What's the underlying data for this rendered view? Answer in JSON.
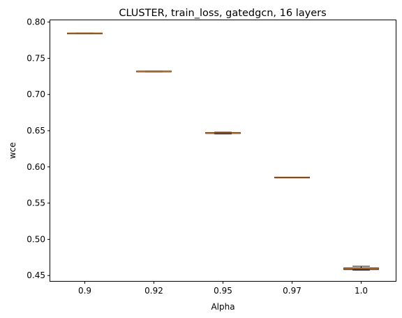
{
  "chart_data": {
    "type": "box",
    "title": "CLUSTER, train_loss, gatedgcn, 16 layers",
    "xlabel": "Alpha",
    "ylabel": "wce",
    "categories": [
      "0.9",
      "0.92",
      "0.95",
      "0.97",
      "1.0"
    ],
    "boxes": [
      {
        "whisker_low": 0.7838,
        "q1": 0.784,
        "median": 0.7843,
        "q3": 0.7846,
        "whisker_high": 0.7848
      },
      {
        "whisker_low": 0.7313,
        "q1": 0.7315,
        "median": 0.7318,
        "q3": 0.7321,
        "whisker_high": 0.7323
      },
      {
        "whisker_low": 0.6455,
        "q1": 0.6462,
        "median": 0.6469,
        "q3": 0.6474,
        "whisker_high": 0.648
      },
      {
        "whisker_low": 0.5848,
        "q1": 0.585,
        "median": 0.5853,
        "q3": 0.5856,
        "whisker_high": 0.5858
      },
      {
        "whisker_low": 0.4575,
        "q1": 0.4582,
        "median": 0.4594,
        "q3": 0.4605,
        "whisker_high": 0.4628
      }
    ],
    "ylim": [
      0.4425,
      0.8025
    ],
    "yticks": [
      "0.45",
      "0.50",
      "0.55",
      "0.60",
      "0.65",
      "0.70",
      "0.75",
      "0.80"
    ],
    "ytick_values": [
      0.45,
      0.5,
      0.55,
      0.6,
      0.65,
      0.7,
      0.75,
      0.8
    ],
    "grid": false,
    "colors": {
      "box": "#000000",
      "median": "#ff7f0e",
      "axis": "#000000"
    }
  }
}
